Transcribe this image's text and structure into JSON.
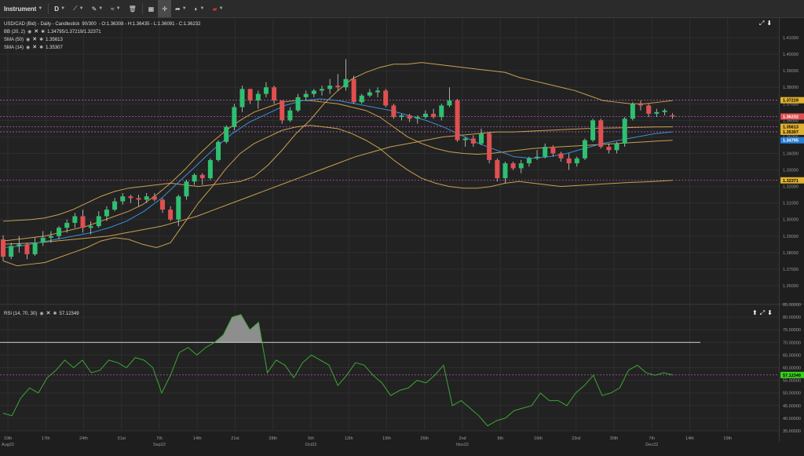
{
  "toolbar": {
    "instrument_label": "Instrument",
    "period_label": "D",
    "items": [
      "line-tool-icon",
      "pen-tool-icon",
      "indicator-icon",
      "trash-icon",
      "layout-icon",
      "crosshair-icon",
      "share-icon",
      "theme-icon",
      "flag-icon"
    ]
  },
  "legend": {
    "title": "USD/CAD (Bid) - Daily - Candlestick",
    "range": "90/300",
    "ohlc": "- O:1.36308 - H:1.36435 - L:1.36091 - C:1.36232",
    "rows": [
      {
        "label": "BB (20, 2)",
        "value": "1.34795/1.37219/1.32371"
      },
      {
        "label": "SMA (50)",
        "value": "1.35613"
      },
      {
        "label": "SMA (14)",
        "value": "1.35307"
      }
    ],
    "rsi_label": "RSI (14, 70, 30)",
    "rsi_value": "57.12349"
  },
  "colors": {
    "bull": "#2fbf71",
    "bear": "#e05050",
    "bb": "#c8a050",
    "sma50": "#c8a050",
    "sma14": "#3a8fd8",
    "rsi": "#3aa832",
    "rsi_fill": "#9a9a9a",
    "grid": "#2e2e2e"
  },
  "chart_data": [
    {
      "type": "candlestick",
      "title": "USD/CAD (Bid) - Daily - Candlestick",
      "ylim": [
        1.25,
        1.42
      ],
      "y_ticks": [
        "1.41000",
        "1.40000",
        "1.39000",
        "1.38000",
        "1.37000",
        "1.36000",
        "1.35000",
        "1.34000",
        "1.33000",
        "1.32000",
        "1.31000",
        "1.30000",
        "1.29000",
        "1.28000",
        "1.27000",
        "1.26000"
      ],
      "x_ticks": [
        "10th",
        "17th",
        "24th",
        "31st",
        "7th",
        "14th",
        "21st",
        "28th",
        "5th",
        "12th",
        "19th",
        "26th",
        "2nd",
        "9th",
        "16th",
        "23rd",
        "30th",
        "7th",
        "14th",
        "19th"
      ],
      "x_sub_ticks": [
        "Aug22",
        "",
        "",
        "",
        "Sep22",
        "",
        "",
        "",
        "Oct22",
        "",
        "",
        "",
        "Nov22",
        "",
        "",
        "",
        "",
        "Dec22",
        "",
        ""
      ],
      "candles": [
        [
          1.288,
          1.2905,
          1.275,
          1.2775
        ],
        [
          1.2775,
          1.286,
          1.276,
          1.284
        ],
        [
          1.284,
          1.29,
          1.28,
          1.285
        ],
        [
          1.285,
          1.286,
          1.276,
          1.279
        ],
        [
          1.279,
          1.289,
          1.278,
          1.286
        ],
        [
          1.286,
          1.293,
          1.284,
          1.289
        ],
        [
          1.289,
          1.293,
          1.286,
          1.29
        ],
        [
          1.29,
          1.296,
          1.288,
          1.295
        ],
        [
          1.295,
          1.3,
          1.292,
          1.298
        ],
        [
          1.298,
          1.304,
          1.295,
          1.302
        ],
        [
          1.302,
          1.306,
          1.292,
          1.295
        ],
        [
          1.295,
          1.299,
          1.291,
          1.296
        ],
        [
          1.296,
          1.305,
          1.295,
          1.302
        ],
        [
          1.302,
          1.308,
          1.299,
          1.306
        ],
        [
          1.306,
          1.313,
          1.305,
          1.311
        ],
        [
          1.311,
          1.316,
          1.309,
          1.314
        ],
        [
          1.314,
          1.315,
          1.31,
          1.313
        ],
        [
          1.313,
          1.315,
          1.308,
          1.312
        ],
        [
          1.312,
          1.316,
          1.31,
          1.314
        ],
        [
          1.314,
          1.316,
          1.311,
          1.312
        ],
        [
          1.312,
          1.313,
          1.304,
          1.306
        ],
        [
          1.306,
          1.308,
          1.299,
          1.3
        ],
        [
          1.3,
          1.315,
          1.296,
          1.314
        ],
        [
          1.314,
          1.324,
          1.312,
          1.323
        ],
        [
          1.323,
          1.328,
          1.321,
          1.327
        ],
        [
          1.327,
          1.328,
          1.321,
          1.325
        ],
        [
          1.325,
          1.337,
          1.324,
          1.336
        ],
        [
          1.336,
          1.348,
          1.335,
          1.347
        ],
        [
          1.347,
          1.357,
          1.346,
          1.356
        ],
        [
          1.356,
          1.37,
          1.354,
          1.368
        ],
        [
          1.368,
          1.381,
          1.365,
          1.379
        ],
        [
          1.379,
          1.379,
          1.37,
          1.372
        ],
        [
          1.372,
          1.378,
          1.367,
          1.376
        ],
        [
          1.376,
          1.383,
          1.374,
          1.38
        ],
        [
          1.38,
          1.381,
          1.37,
          1.372
        ],
        [
          1.372,
          1.372,
          1.358,
          1.36
        ],
        [
          1.36,
          1.368,
          1.359,
          1.366
        ],
        [
          1.366,
          1.376,
          1.365,
          1.374
        ],
        [
          1.374,
          1.378,
          1.372,
          1.376
        ],
        [
          1.376,
          1.379,
          1.374,
          1.378
        ],
        [
          1.378,
          1.381,
          1.375,
          1.379
        ],
        [
          1.379,
          1.385,
          1.376,
          1.381
        ],
        [
          1.381,
          1.388,
          1.378,
          1.38
        ],
        [
          1.38,
          1.397,
          1.378,
          1.385
        ],
        [
          1.385,
          1.387,
          1.37,
          1.371
        ],
        [
          1.371,
          1.376,
          1.37,
          1.375
        ],
        [
          1.375,
          1.379,
          1.374,
          1.377
        ],
        [
          1.377,
          1.38,
          1.374,
          1.378
        ],
        [
          1.378,
          1.379,
          1.368,
          1.369
        ],
        [
          1.369,
          1.37,
          1.361,
          1.362
        ],
        [
          1.362,
          1.364,
          1.36,
          1.363
        ],
        [
          1.363,
          1.364,
          1.359,
          1.361
        ],
        [
          1.361,
          1.363,
          1.358,
          1.362
        ],
        [
          1.362,
          1.366,
          1.361,
          1.364
        ],
        [
          1.364,
          1.367,
          1.361,
          1.362
        ],
        [
          1.362,
          1.37,
          1.36,
          1.369
        ],
        [
          1.369,
          1.38,
          1.368,
          1.372
        ],
        [
          1.372,
          1.373,
          1.347,
          1.348
        ],
        [
          1.348,
          1.35,
          1.344,
          1.349
        ],
        [
          1.349,
          1.351,
          1.344,
          1.346
        ],
        [
          1.346,
          1.355,
          1.345,
          1.352
        ],
        [
          1.352,
          1.353,
          1.334,
          1.336
        ],
        [
          1.336,
          1.337,
          1.323,
          1.325
        ],
        [
          1.325,
          1.335,
          1.322,
          1.334
        ],
        [
          1.334,
          1.335,
          1.33,
          1.331
        ],
        [
          1.331,
          1.336,
          1.328,
          1.334
        ],
        [
          1.334,
          1.338,
          1.332,
          1.337
        ],
        [
          1.337,
          1.342,
          1.336,
          1.338
        ],
        [
          1.338,
          1.346,
          1.337,
          1.344
        ],
        [
          1.344,
          1.345,
          1.338,
          1.34
        ],
        [
          1.34,
          1.341,
          1.335,
          1.337
        ],
        [
          1.337,
          1.34,
          1.33,
          1.334
        ],
        [
          1.334,
          1.338,
          1.332,
          1.337
        ],
        [
          1.337,
          1.349,
          1.336,
          1.348
        ],
        [
          1.348,
          1.361,
          1.347,
          1.36
        ],
        [
          1.36,
          1.361,
          1.343,
          1.344
        ],
        [
          1.344,
          1.346,
          1.34,
          1.342
        ],
        [
          1.342,
          1.347,
          1.34,
          1.346
        ],
        [
          1.346,
          1.362,
          1.344,
          1.361
        ],
        [
          1.361,
          1.371,
          1.36,
          1.37
        ],
        [
          1.37,
          1.372,
          1.366,
          1.369
        ],
        [
          1.369,
          1.37,
          1.362,
          1.364
        ],
        [
          1.364,
          1.367,
          1.362,
          1.365
        ],
        [
          1.365,
          1.367,
          1.363,
          1.366
        ],
        [
          1.36308,
          1.36435,
          1.36091,
          1.36232
        ]
      ],
      "bb_upper": [
        1.299,
        1.2995,
        1.3,
        1.301,
        1.303,
        1.306,
        1.31,
        1.314,
        1.317,
        1.319,
        1.32,
        1.321,
        1.322,
        1.321,
        1.32,
        1.321,
        1.322,
        1.323,
        1.326,
        1.333,
        1.342,
        1.352,
        1.36,
        1.37,
        1.378,
        1.385,
        1.389,
        1.392,
        1.394,
        1.394,
        1.395,
        1.394,
        1.393,
        1.392,
        1.391,
        1.39,
        1.389,
        1.386,
        1.384,
        1.382,
        1.38,
        1.378,
        1.375,
        1.372,
        1.371,
        1.37,
        1.37,
        1.371,
        1.372
      ],
      "bb_lower": [
        1.275,
        1.272,
        1.273,
        1.274,
        1.277,
        1.28,
        1.283,
        1.287,
        1.289,
        1.288,
        1.285,
        1.283,
        1.286,
        1.298,
        1.31,
        1.32,
        1.331,
        1.34,
        1.346,
        1.35,
        1.354,
        1.356,
        1.357,
        1.356,
        1.355,
        1.352,
        1.348,
        1.343,
        1.336,
        1.33,
        1.325,
        1.322,
        1.32,
        1.319,
        1.319,
        1.32,
        1.322,
        1.323,
        1.322,
        1.321,
        1.32,
        1.3205,
        1.321,
        1.3215,
        1.322,
        1.3225,
        1.3228,
        1.3232,
        1.3237
      ],
      "bb_mid": [
        1.287,
        1.288,
        1.289,
        1.29,
        1.292,
        1.294,
        1.296,
        1.299,
        1.302,
        1.305,
        1.309,
        1.315,
        1.322,
        1.33,
        1.339,
        1.347,
        1.354,
        1.36,
        1.365,
        1.368,
        1.371,
        1.372,
        1.372,
        1.371,
        1.37,
        1.368,
        1.366,
        1.362,
        1.356,
        1.35,
        1.346,
        1.343,
        1.341,
        1.34,
        1.3395,
        1.34,
        1.341,
        1.342,
        1.343,
        1.3435,
        1.344,
        1.3445,
        1.345,
        1.3455,
        1.346,
        1.3465,
        1.347,
        1.3475,
        1.34795
      ],
      "sma50": [
        1.285,
        1.2855,
        1.286,
        1.287,
        1.288,
        1.289,
        1.29,
        1.292,
        1.294,
        1.296,
        1.299,
        1.302,
        1.306,
        1.31,
        1.314,
        1.318,
        1.322,
        1.326,
        1.33,
        1.334,
        1.338,
        1.341,
        1.344,
        1.346,
        1.348,
        1.35,
        1.351,
        1.352,
        1.353,
        1.353,
        1.3535,
        1.354,
        1.3545,
        1.355,
        1.3553,
        1.3555,
        1.3558,
        1.356,
        1.3561
      ],
      "sma14": [
        1.283,
        1.284,
        1.286,
        1.288,
        1.29,
        1.292,
        1.295,
        1.299,
        1.305,
        1.313,
        1.323,
        1.333,
        1.343,
        1.352,
        1.359,
        1.364,
        1.369,
        1.372,
        1.373,
        1.372,
        1.37,
        1.368,
        1.366,
        1.363,
        1.36,
        1.356,
        1.351,
        1.346,
        1.342,
        1.338,
        1.337,
        1.338,
        1.34,
        1.343,
        1.346,
        1.348,
        1.35,
        1.352,
        1.35307
      ],
      "markers": [
        {
          "value": "1.37219",
          "color": "#e0b030",
          "text_color": "#000"
        },
        {
          "value": "1.36232",
          "color": "#e05050",
          "text_color": "#fff"
        },
        {
          "value": "1.35613",
          "color": "#e0b030",
          "text_color": "#000"
        },
        {
          "value": "1.35307",
          "color": "#e0b030",
          "text_color": "#000"
        },
        {
          "value": "1.34795",
          "color": "#2a80d8",
          "text_color": "#fff"
        },
        {
          "value": "1.32371",
          "color": "#e0b030",
          "text_color": "#000"
        }
      ]
    },
    {
      "type": "line",
      "title": "RSI (14, 70, 30)",
      "ylim": [
        35,
        85
      ],
      "y_ticks": [
        "85.00000",
        "80.00000",
        "75.00000",
        "70.00000",
        "65.00000",
        "60.00000",
        "55.00000",
        "50.00000",
        "45.00000",
        "40.00000",
        "35.00000"
      ],
      "threshold": 70,
      "current": "57.12349",
      "values": [
        42,
        41,
        48,
        52,
        50,
        56,
        59,
        63,
        60,
        63,
        58,
        59,
        63,
        62,
        60,
        64,
        63,
        60,
        50,
        57,
        66,
        68,
        65,
        68,
        70,
        73,
        80,
        81,
        75,
        78,
        58,
        63,
        61,
        56,
        62,
        65,
        63,
        61,
        53,
        57,
        62,
        61,
        57,
        54,
        49,
        51,
        52,
        55,
        54,
        57,
        61,
        45,
        47,
        44,
        41,
        37,
        39,
        40,
        43,
        44,
        45,
        50,
        47,
        47,
        45,
        50,
        53,
        57,
        49,
        50,
        52,
        59,
        61,
        58,
        57,
        58,
        57.12349
      ]
    }
  ]
}
